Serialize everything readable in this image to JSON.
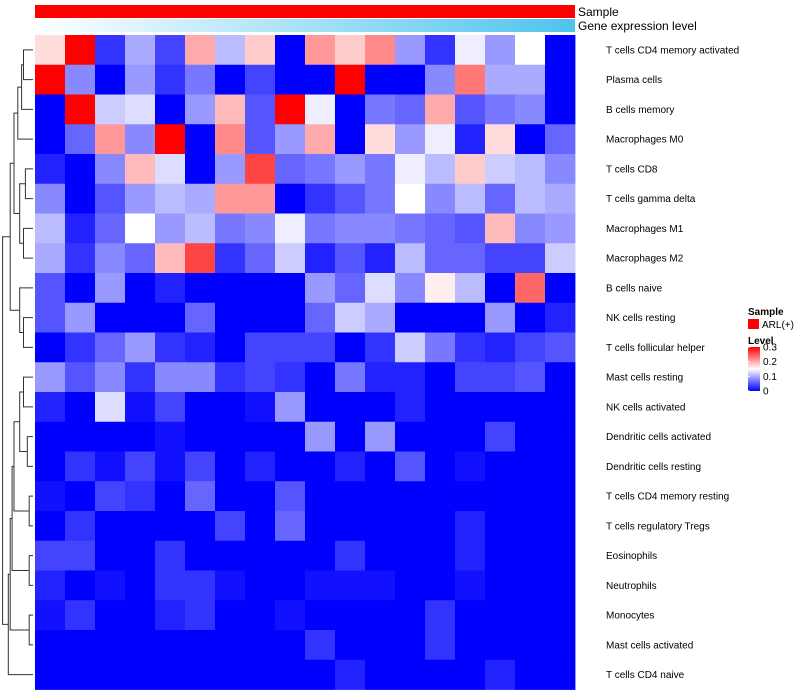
{
  "chart_data": {
    "type": "heatmap",
    "title": "",
    "column_count": 18,
    "annotations": [
      {
        "name": "Sample",
        "color": "#ff0000"
      },
      {
        "name": "Gene expression level",
        "gradient_from": "#ffffff",
        "gradient_to": "#4fc3ee"
      }
    ],
    "rows": [
      "T cells CD4 memory activated",
      "Plasma cells",
      "B cells memory",
      "Macrophages M0",
      "T cells CD8",
      "T cells gamma delta",
      "Macrophages M1",
      "Macrophages M2",
      "B cells naive",
      "NK cells resting",
      "T cells follicular helper",
      "Mast cells resting",
      "NK cells activated",
      "Dendritic cells activated",
      "Dendritic cells resting",
      "T cells CD4 memory resting",
      "T cells regulatory  Tregs",
      "Eosinophils",
      "Neutrophils",
      "Monocytes",
      "Mast cells activated",
      "T cells CD4 naive"
    ],
    "values": [
      [
        0.17,
        0.3,
        0.03,
        0.1,
        0.04,
        0.2,
        0.11,
        0.18,
        0.0,
        0.21,
        0.18,
        0.22,
        0.09,
        0.03,
        0.14,
        0.09,
        0.15,
        0.0
      ],
      [
        0.3,
        0.08,
        0.0,
        0.09,
        0.03,
        0.07,
        0.0,
        0.04,
        0.0,
        0.0,
        0.3,
        0.0,
        0.0,
        0.08,
        0.23,
        0.1,
        0.1,
        0.0
      ],
      [
        0.0,
        0.3,
        0.12,
        0.13,
        0.0,
        0.09,
        0.19,
        0.05,
        0.3,
        0.14,
        0.0,
        0.07,
        0.06,
        0.2,
        0.05,
        0.07,
        0.08,
        0.0
      ],
      [
        0.0,
        0.06,
        0.21,
        0.08,
        0.3,
        0.0,
        0.22,
        0.05,
        0.09,
        0.2,
        0.0,
        0.17,
        0.09,
        0.14,
        0.02,
        0.17,
        0.0,
        0.06
      ],
      [
        0.02,
        0.0,
        0.08,
        0.19,
        0.13,
        0.0,
        0.09,
        0.26,
        0.06,
        0.07,
        0.09,
        0.07,
        0.14,
        0.11,
        0.18,
        0.12,
        0.11,
        0.08
      ],
      [
        0.08,
        0.0,
        0.05,
        0.09,
        0.11,
        0.1,
        0.21,
        0.21,
        0.0,
        0.03,
        0.05,
        0.07,
        0.15,
        0.08,
        0.11,
        0.06,
        0.11,
        0.1
      ],
      [
        0.11,
        0.02,
        0.06,
        0.15,
        0.09,
        0.11,
        0.07,
        0.08,
        0.14,
        0.07,
        0.08,
        0.08,
        0.07,
        0.06,
        0.05,
        0.19,
        0.08,
        0.09
      ],
      [
        0.1,
        0.03,
        0.08,
        0.06,
        0.19,
        0.26,
        0.03,
        0.06,
        0.12,
        0.02,
        0.05,
        0.02,
        0.11,
        0.06,
        0.06,
        0.04,
        0.04,
        0.12
      ],
      [
        0.05,
        0.0,
        0.09,
        0.0,
        0.02,
        0.0,
        0.0,
        0.0,
        0.0,
        0.09,
        0.06,
        0.13,
        0.08,
        0.16,
        0.11,
        0.0,
        0.24,
        0.0
      ],
      [
        0.05,
        0.09,
        0.0,
        0.0,
        0.0,
        0.06,
        0.0,
        0.0,
        0.0,
        0.06,
        0.12,
        0.1,
        0.0,
        0.0,
        0.0,
        0.09,
        0.0,
        0.02
      ],
      [
        0.0,
        0.03,
        0.06,
        0.09,
        0.03,
        0.02,
        0.0,
        0.04,
        0.04,
        0.04,
        0.0,
        0.03,
        0.12,
        0.07,
        0.03,
        0.02,
        0.04,
        0.05
      ],
      [
        0.09,
        0.05,
        0.08,
        0.03,
        0.08,
        0.08,
        0.03,
        0.04,
        0.03,
        0.0,
        0.07,
        0.02,
        0.02,
        0.0,
        0.04,
        0.04,
        0.05,
        0.0
      ],
      [
        0.02,
        0.0,
        0.13,
        0.01,
        0.04,
        0.0,
        0.0,
        0.01,
        0.09,
        0.0,
        0.0,
        0.0,
        0.02,
        0.0,
        0.0,
        0.0,
        0.0,
        0.0
      ],
      [
        0.0,
        0.0,
        0.0,
        0.0,
        0.01,
        0.0,
        0.0,
        0.0,
        0.0,
        0.09,
        0.0,
        0.09,
        0.0,
        0.0,
        0.0,
        0.04,
        0.0,
        0.0
      ],
      [
        0.0,
        0.03,
        0.01,
        0.04,
        0.01,
        0.04,
        0.0,
        0.02,
        0.0,
        0.0,
        0.02,
        0.0,
        0.05,
        0.0,
        0.01,
        0.0,
        0.0,
        0.0
      ],
      [
        0.01,
        0.0,
        0.04,
        0.03,
        0.0,
        0.06,
        0.0,
        0.0,
        0.05,
        0.0,
        0.0,
        0.0,
        0.0,
        0.0,
        0.0,
        0.0,
        0.0,
        0.0
      ],
      [
        0.0,
        0.03,
        0.0,
        0.0,
        0.0,
        0.0,
        0.04,
        0.0,
        0.06,
        0.0,
        0.0,
        0.0,
        0.0,
        0.0,
        0.02,
        0.0,
        0.0,
        0.0
      ],
      [
        0.04,
        0.04,
        0.0,
        0.0,
        0.03,
        0.0,
        0.0,
        0.0,
        0.0,
        0.0,
        0.03,
        0.0,
        0.0,
        0.0,
        0.02,
        0.0,
        0.0,
        0.0
      ],
      [
        0.02,
        0.0,
        0.01,
        0.0,
        0.03,
        0.03,
        0.01,
        0.0,
        0.0,
        0.01,
        0.01,
        0.01,
        0.0,
        0.0,
        0.01,
        0.0,
        0.0,
        0.0
      ],
      [
        0.01,
        0.03,
        0.0,
        0.0,
        0.02,
        0.03,
        0.0,
        0.0,
        0.01,
        0.0,
        0.0,
        0.0,
        0.0,
        0.03,
        0.0,
        0.0,
        0.0,
        0.0
      ],
      [
        0.0,
        0.0,
        0.0,
        0.0,
        0.0,
        0.0,
        0.0,
        0.0,
        0.0,
        0.03,
        0.0,
        0.0,
        0.0,
        0.03,
        0.0,
        0.0,
        0.0,
        0.0
      ],
      [
        0.0,
        0.0,
        0.0,
        0.0,
        0.0,
        0.0,
        0.0,
        0.0,
        0.0,
        0.0,
        0.02,
        0.0,
        0.0,
        0.0,
        0.0,
        0.02,
        0.0,
        0.0
      ]
    ],
    "color_scale": {
      "min": 0,
      "mid": 0.15,
      "max": 0.3,
      "low": "#0000ff",
      "midColor": "#ffffff",
      "high": "#ff0000"
    },
    "legend": {
      "sample_title": "Sample",
      "sample_item": "ARL(+)",
      "sample_color": "#ff0000",
      "level_title": "Level",
      "ticks": [
        {
          "value": 0.3,
          "label": "0.3"
        },
        {
          "value": 0.2,
          "label": "0.2"
        },
        {
          "value": 0.1,
          "label": "0.1"
        },
        {
          "value": 0.0,
          "label": "0"
        }
      ],
      "placement": "right"
    },
    "dendrogram": {
      "merges": [
        [
          0,
          1
        ],
        [
          2,
          22
        ],
        [
          3,
          23
        ],
        [
          4,
          5
        ],
        [
          6,
          7
        ],
        [
          25,
          26
        ],
        [
          24,
          27
        ],
        [
          9,
          10
        ],
        [
          8,
          29
        ],
        [
          28,
          30
        ],
        [
          11,
          12
        ],
        [
          13,
          14
        ],
        [
          32,
          33
        ],
        [
          15,
          16
        ],
        [
          34,
          35
        ],
        [
          17,
          18
        ],
        [
          36,
          37
        ],
        [
          19,
          20
        ],
        [
          38,
          39
        ],
        [
          21,
          40
        ],
        [
          31,
          41
        ]
      ],
      "heights": [
        5,
        6,
        8,
        4,
        5,
        7,
        10,
        5,
        7,
        12,
        5,
        3,
        7,
        2,
        10,
        2,
        11,
        2,
        12,
        13,
        16
      ]
    }
  }
}
